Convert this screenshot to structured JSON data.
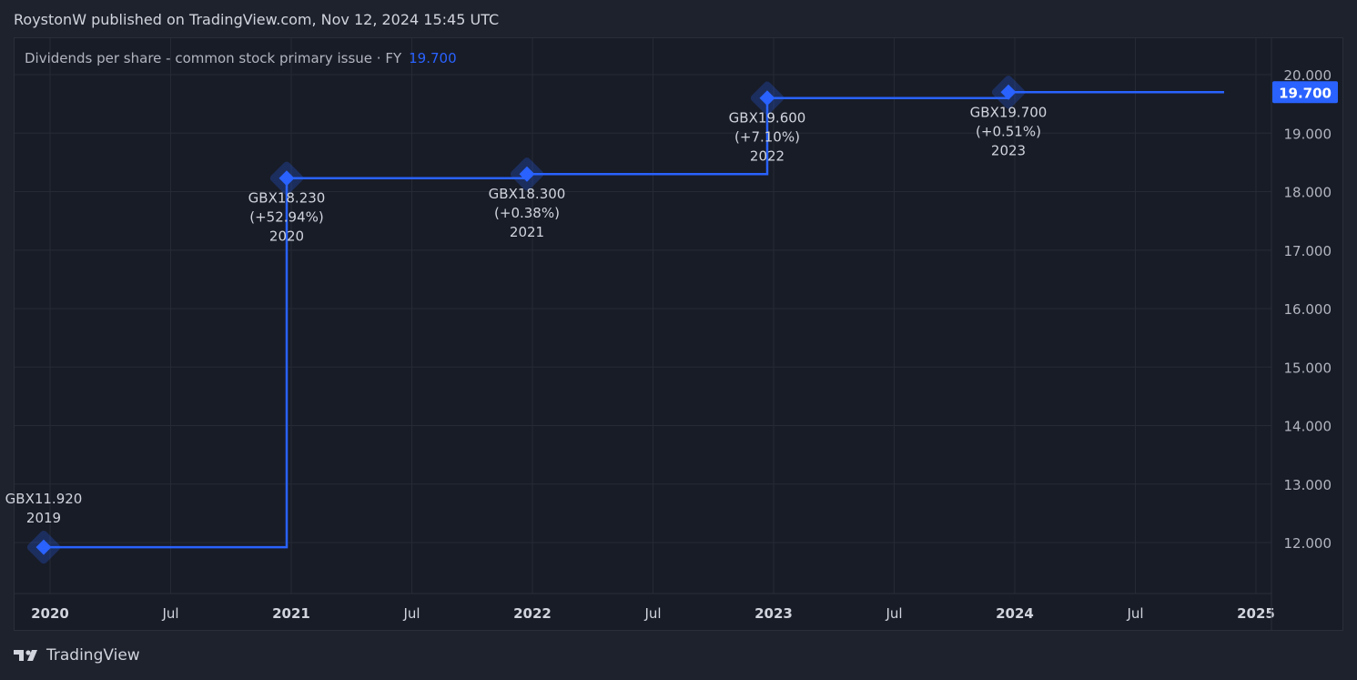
{
  "header": "RoystonW published on TradingView.com, Nov 12, 2024 15:45 UTC",
  "legend": {
    "title": "Dividends per share - common stock primary issue · FY",
    "value": "19.700"
  },
  "footer": {
    "brand": "TradingView"
  },
  "colors": {
    "line": "#2962ff",
    "bg": "#181c27"
  },
  "chart_data": {
    "type": "line",
    "step": true,
    "title": "Dividends per share - common stock primary issue · FY",
    "x_ticks": [
      "2020",
      "Jul",
      "2021",
      "Jul",
      "2022",
      "Jul",
      "2023",
      "Jul",
      "2024",
      "Jul",
      "2025"
    ],
    "y_ticks": [
      "20.000",
      "19.000",
      "18.000",
      "17.000",
      "16.000",
      "15.000",
      "14.000",
      "13.000",
      "12.000"
    ],
    "ylim": [
      11.3,
      20.6
    ],
    "last_value_label": "19.700",
    "points": [
      {
        "fy": "2019",
        "value": 11.92,
        "label": "GBX11.920",
        "change": ""
      },
      {
        "fy": "2020",
        "value": 18.23,
        "label": "GBX18.230",
        "change": "(+52.94%)"
      },
      {
        "fy": "2021",
        "value": 18.3,
        "label": "GBX18.300",
        "change": "(+0.38%)"
      },
      {
        "fy": "2022",
        "value": 19.6,
        "label": "GBX19.600",
        "change": "(+7.10%)"
      },
      {
        "fy": "2023",
        "value": 19.7,
        "label": "GBX19.700",
        "change": "(+0.51%)"
      }
    ]
  }
}
